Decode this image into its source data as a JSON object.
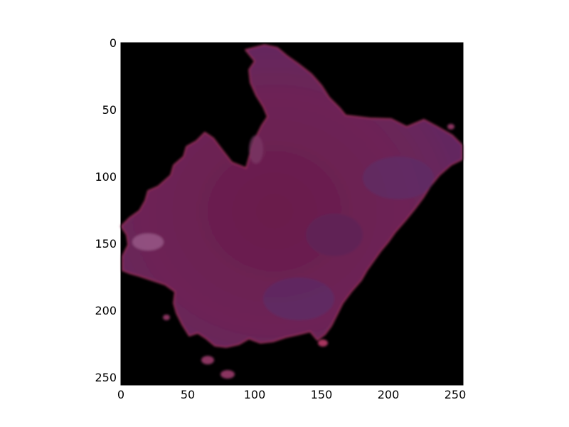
{
  "image": {
    "background_color": "#000000",
    "subject": "purple-magenta irregular region on black background",
    "region_color": "#6e1f52",
    "region_highlight_color": "#8a3a6e",
    "region_edge_color": "#a8345f"
  },
  "axes": {
    "x_ticks": [
      "0",
      "50",
      "100",
      "150",
      "200",
      "250"
    ],
    "y_ticks": [
      "0",
      "50",
      "100",
      "150",
      "200",
      "250"
    ],
    "x_range": [
      0,
      256
    ],
    "y_range": [
      0,
      256
    ]
  }
}
